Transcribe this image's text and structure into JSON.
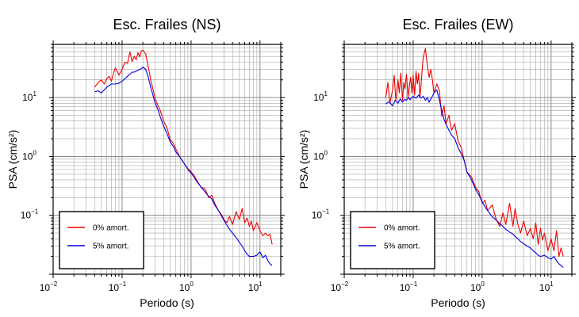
{
  "chart_data": [
    {
      "type": "line",
      "title": "Esc. Frailes (NS)",
      "xlabel": "Periodo (s)",
      "ylabel": "PSA (cm/s²)",
      "xscale": "log",
      "yscale": "log",
      "xlim": [
        0.01,
        20
      ],
      "ylim": [
        0.01,
        80
      ],
      "grid": true,
      "legend_position": "bottom-left",
      "x_ticks": [
        {
          "base": "10",
          "exp": "−2"
        },
        {
          "base": "10",
          "exp": "−1"
        },
        {
          "base": "10",
          "exp": "0"
        },
        {
          "base": "10",
          "exp": "1"
        }
      ],
      "y_ticks": [
        {
          "base": "10",
          "exp": "−1"
        },
        {
          "base": "10",
          "exp": "0"
        },
        {
          "base": "10",
          "exp": "1"
        }
      ],
      "series": [
        {
          "name": "0% amort.",
          "color": "#ee0000",
          "x": [
            0.04,
            0.045,
            0.05,
            0.055,
            0.06,
            0.065,
            0.07,
            0.075,
            0.08,
            0.09,
            0.1,
            0.11,
            0.12,
            0.13,
            0.14,
            0.15,
            0.16,
            0.17,
            0.18,
            0.19,
            0.2,
            0.22,
            0.24,
            0.26,
            0.28,
            0.3,
            0.33,
            0.36,
            0.4,
            0.45,
            0.5,
            0.55,
            0.6,
            0.7,
            0.8,
            0.9,
            1.0,
            1.1,
            1.2,
            1.4,
            1.6,
            1.8,
            2.0,
            2.2,
            2.5,
            2.8,
            3.0,
            3.3,
            3.6,
            4.0,
            4.5,
            5.0,
            5.5,
            6.0,
            6.5,
            7.0,
            7.5,
            8.0,
            9.0,
            10.0,
            11.0,
            12.0,
            13.0,
            14.0,
            15.0
          ],
          "y": [
            15,
            18,
            20,
            17,
            21,
            23,
            19,
            26,
            32,
            24,
            30,
            40,
            38,
            60,
            41,
            50,
            44,
            58,
            49,
            62,
            64,
            55,
            33,
            20,
            14,
            9.8,
            7.4,
            5.9,
            4.0,
            3.0,
            1.9,
            1.7,
            1.35,
            0.95,
            0.75,
            0.62,
            0.55,
            0.48,
            0.4,
            0.3,
            0.28,
            0.2,
            0.22,
            0.16,
            0.12,
            0.1,
            0.085,
            0.075,
            0.095,
            0.07,
            0.115,
            0.085,
            0.13,
            0.075,
            0.09,
            0.065,
            0.08,
            0.055,
            0.075,
            0.055,
            0.045,
            0.05,
            0.045,
            0.048,
            0.032
          ]
        },
        {
          "name": "5% amort.",
          "color": "#0000dd",
          "x": [
            0.04,
            0.045,
            0.05,
            0.055,
            0.06,
            0.065,
            0.07,
            0.08,
            0.09,
            0.1,
            0.11,
            0.12,
            0.13,
            0.14,
            0.15,
            0.16,
            0.17,
            0.18,
            0.19,
            0.2,
            0.22,
            0.24,
            0.26,
            0.28,
            0.3,
            0.33,
            0.36,
            0.4,
            0.45,
            0.5,
            0.55,
            0.6,
            0.7,
            0.8,
            0.9,
            1.0,
            1.1,
            1.2,
            1.4,
            1.6,
            1.8,
            2.0,
            2.2,
            2.5,
            2.8,
            3.0,
            3.3,
            3.6,
            4.0,
            4.5,
            5.0,
            5.5,
            6.0,
            6.5,
            7.0,
            8.0,
            9.0,
            10.0,
            11.0,
            12.0,
            13.0,
            14.0,
            15.0
          ],
          "y": [
            12.5,
            13,
            12,
            13.5,
            15,
            16,
            17,
            17,
            17.5,
            19,
            21,
            23,
            25,
            27,
            27,
            28,
            29,
            30,
            31,
            33,
            30,
            22,
            15,
            11,
            8.2,
            6.3,
            4.6,
            3.3,
            2.4,
            1.75,
            1.5,
            1.2,
            0.95,
            0.75,
            0.6,
            0.52,
            0.45,
            0.38,
            0.3,
            0.25,
            0.21,
            0.19,
            0.15,
            0.12,
            0.095,
            0.082,
            0.068,
            0.058,
            0.05,
            0.042,
            0.035,
            0.03,
            0.025,
            0.022,
            0.02,
            0.02,
            0.021,
            0.024,
            0.019,
            0.021,
            0.017,
            0.015,
            0.014
          ]
        }
      ]
    },
    {
      "type": "line",
      "title": "Esc. Frailes (EW)",
      "xlabel": "Periodo (s)",
      "ylabel": "PSA (cm/s²)",
      "xscale": "log",
      "yscale": "log",
      "xlim": [
        0.01,
        20
      ],
      "ylim": [
        0.01,
        80
      ],
      "grid": true,
      "legend_position": "bottom-left",
      "x_ticks": [
        {
          "base": "10",
          "exp": "−2"
        },
        {
          "base": "10",
          "exp": "−1"
        },
        {
          "base": "10",
          "exp": "0"
        },
        {
          "base": "10",
          "exp": "1"
        }
      ],
      "y_ticks": [
        {
          "base": "10",
          "exp": "−1"
        },
        {
          "base": "10",
          "exp": "0"
        },
        {
          "base": "10",
          "exp": "1"
        }
      ],
      "series": [
        {
          "name": "0% amort.",
          "color": "#ee0000",
          "x": [
            0.04,
            0.043,
            0.046,
            0.05,
            0.053,
            0.056,
            0.06,
            0.063,
            0.066,
            0.07,
            0.073,
            0.076,
            0.08,
            0.084,
            0.088,
            0.092,
            0.096,
            0.1,
            0.105,
            0.11,
            0.115,
            0.12,
            0.125,
            0.13,
            0.135,
            0.14,
            0.15,
            0.16,
            0.17,
            0.18,
            0.19,
            0.2,
            0.22,
            0.24,
            0.26,
            0.28,
            0.3,
            0.33,
            0.36,
            0.4,
            0.45,
            0.5,
            0.55,
            0.6,
            0.7,
            0.8,
            0.9,
            1.0,
            1.1,
            1.2,
            1.4,
            1.6,
            1.8,
            2.0,
            2.2,
            2.5,
            2.8,
            3.0,
            3.3,
            3.6,
            4.0,
            4.5,
            5.0,
            5.5,
            6.0,
            6.5,
            7.0,
            7.5,
            8.0,
            9.0,
            10.0,
            11.0,
            12.0,
            13.0,
            14.0,
            15.0
          ],
          "y": [
            10,
            18,
            8,
            13,
            24,
            9,
            20,
            12,
            26,
            9,
            18,
            14,
            25,
            10,
            16,
            22,
            12,
            24,
            11,
            28,
            17,
            26,
            10,
            16,
            30,
            48,
            68,
            36,
            22,
            30,
            20,
            12,
            17,
            13,
            4.8,
            7.3,
            3.6,
            5.0,
            2.8,
            3.6,
            1.8,
            1.4,
            0.85,
            0.55,
            0.45,
            0.3,
            0.25,
            0.16,
            0.18,
            0.12,
            0.15,
            0.085,
            0.065,
            0.11,
            0.07,
            0.16,
            0.065,
            0.13,
            0.07,
            0.05,
            0.08,
            0.045,
            0.06,
            0.04,
            0.075,
            0.032,
            0.06,
            0.038,
            0.05,
            0.025,
            0.04,
            0.025,
            0.055,
            0.02,
            0.028,
            0.02
          ]
        },
        {
          "name": "5% amort.",
          "color": "#0000dd",
          "x": [
            0.04,
            0.045,
            0.05,
            0.055,
            0.06,
            0.065,
            0.07,
            0.075,
            0.08,
            0.085,
            0.09,
            0.1,
            0.11,
            0.12,
            0.13,
            0.14,
            0.15,
            0.16,
            0.17,
            0.18,
            0.19,
            0.2,
            0.22,
            0.24,
            0.26,
            0.28,
            0.3,
            0.33,
            0.36,
            0.4,
            0.45,
            0.5,
            0.55,
            0.6,
            0.7,
            0.8,
            0.9,
            1.0,
            1.1,
            1.2,
            1.4,
            1.6,
            1.8,
            2.0,
            2.2,
            2.5,
            2.8,
            3.0,
            3.3,
            3.6,
            4.0,
            4.5,
            5.0,
            5.5,
            6.0,
            6.5,
            7.0,
            8.0,
            9.0,
            10.0,
            11.0,
            12.0,
            13.0,
            14.0,
            15.0
          ],
          "y": [
            7.8,
            8.5,
            7.2,
            9.0,
            8.0,
            9.5,
            8.3,
            9.3,
            9.0,
            10.0,
            9.2,
            10.5,
            9.7,
            11.0,
            9.8,
            10.5,
            9.0,
            10.0,
            8.3,
            9.5,
            10.5,
            12.0,
            13.5,
            9.0,
            6.0,
            4.3,
            3.5,
            2.8,
            2.3,
            2.0,
            1.4,
            1.1,
            0.85,
            0.55,
            0.4,
            0.28,
            0.22,
            0.17,
            0.14,
            0.12,
            0.095,
            0.083,
            0.072,
            0.065,
            0.058,
            0.052,
            0.048,
            0.044,
            0.04,
            0.036,
            0.033,
            0.03,
            0.028,
            0.025,
            0.023,
            0.021,
            0.02,
            0.021,
            0.019,
            0.018,
            0.02,
            0.017,
            0.015,
            0.014,
            0.013
          ]
        }
      ]
    }
  ]
}
